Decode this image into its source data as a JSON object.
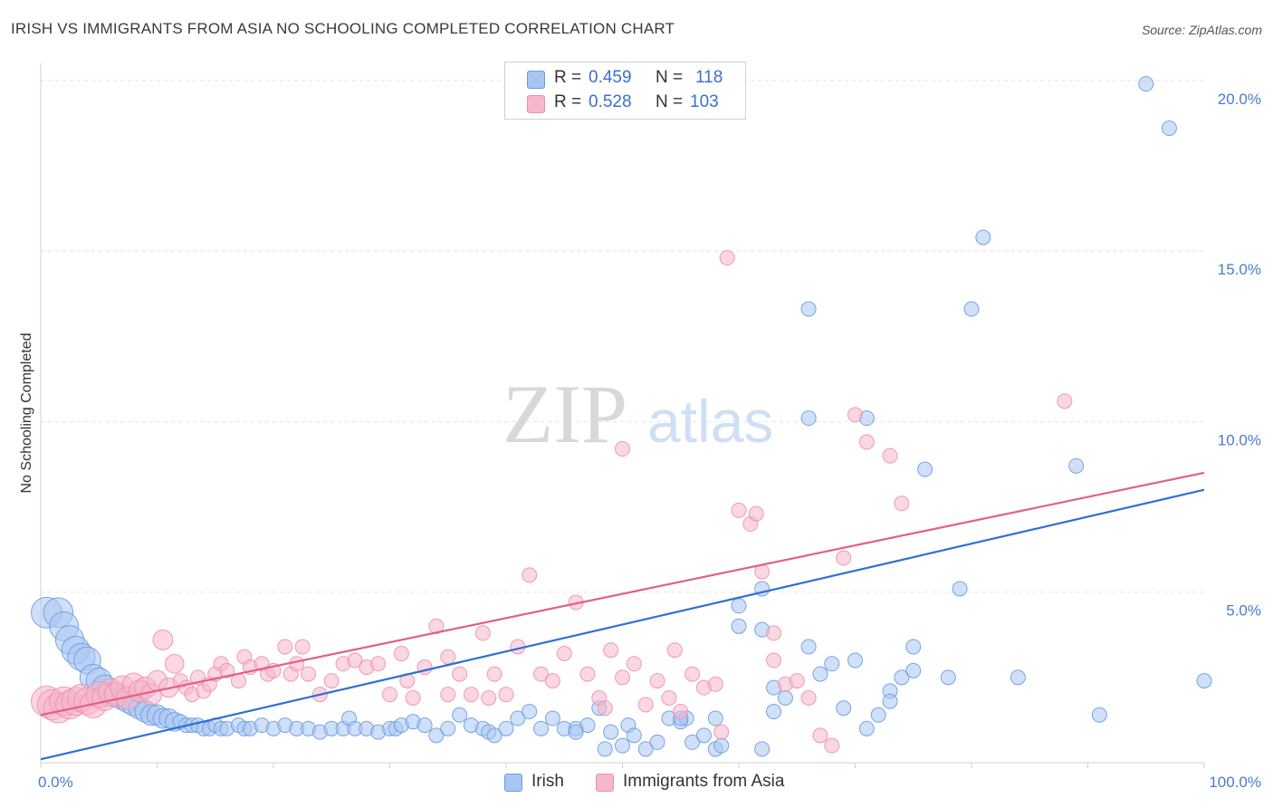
{
  "title": "IRISH VS IMMIGRANTS FROM ASIA NO SCHOOLING COMPLETED CORRELATION CHART",
  "source": "Source: ZipAtlas.com",
  "watermark": {
    "left": "ZIP",
    "right": "atlas"
  },
  "legend": {
    "rows": [
      {
        "r_label": "R = ",
        "r_value": "0.459",
        "n_label": "N = ",
        "n_value": "118",
        "color": "#a9c6f2"
      },
      {
        "r_label": "R = ",
        "r_value": "0.528",
        "n_label": "N = ",
        "n_value": "103",
        "color": "#f6b7cb"
      }
    ]
  },
  "bottom_legend": [
    {
      "label": "Irish",
      "color": "#a9c6f2"
    },
    {
      "label": "Immigrants from Asia",
      "color": "#f6b7cb"
    }
  ],
  "chart_data": {
    "type": "scatter",
    "title": "IRISH VS IMMIGRANTS FROM ASIA NO SCHOOLING COMPLETED CORRELATION CHART",
    "xlabel": "",
    "ylabel": "No Schooling Completed",
    "xlim": [
      0,
      100
    ],
    "ylim": [
      0,
      20.5
    ],
    "x_tick_labels": [
      "0.0%",
      "100.0%"
    ],
    "y_ticks": [
      5,
      10,
      15,
      20
    ],
    "y_tick_labels": [
      "5.0%",
      "10.0%",
      "15.0%",
      "20.0%"
    ],
    "grid": true,
    "legend_position": "top-center",
    "series": [
      {
        "name": "Irish",
        "color": "#6a9be0",
        "fill": "#a9c6f2",
        "trend": {
          "x": [
            0,
            100
          ],
          "y": [
            0.1,
            8.0
          ],
          "color": "#2f6fd6"
        },
        "points": [
          [
            0.5,
            4.4
          ],
          [
            1.5,
            4.4
          ],
          [
            2,
            4.0
          ],
          [
            2.5,
            3.6
          ],
          [
            3,
            3.3
          ],
          [
            3.5,
            3.1
          ],
          [
            4,
            3.0
          ],
          [
            4.5,
            2.5
          ],
          [
            5,
            2.4
          ],
          [
            5.5,
            2.2
          ],
          [
            6,
            2.0
          ],
          [
            6.5,
            2.0
          ],
          [
            7,
            1.9
          ],
          [
            7.5,
            1.8
          ],
          [
            8,
            1.7
          ],
          [
            8.5,
            1.6
          ],
          [
            9,
            1.5
          ],
          [
            9.5,
            1.4
          ],
          [
            10,
            1.4
          ],
          [
            10.5,
            1.3
          ],
          [
            11,
            1.3
          ],
          [
            11.5,
            1.2
          ],
          [
            12,
            1.2
          ],
          [
            12.5,
            1.1
          ],
          [
            13,
            1.1
          ],
          [
            13.5,
            1.1
          ],
          [
            14,
            1.0
          ],
          [
            14.5,
            1.0
          ],
          [
            15,
            1.1
          ],
          [
            15.5,
            1.0
          ],
          [
            16,
            1.0
          ],
          [
            17,
            1.1
          ],
          [
            17.5,
            1.0
          ],
          [
            18,
            1.0
          ],
          [
            19,
            1.1
          ],
          [
            20,
            1.0
          ],
          [
            21,
            1.1
          ],
          [
            22,
            1.0
          ],
          [
            23,
            1.0
          ],
          [
            24,
            0.9
          ],
          [
            25,
            1.0
          ],
          [
            26,
            1.0
          ],
          [
            26.5,
            1.3
          ],
          [
            27,
            1.0
          ],
          [
            28,
            1.0
          ],
          [
            29,
            0.9
          ],
          [
            30,
            1.0
          ],
          [
            30.5,
            1.0
          ],
          [
            31,
            1.1
          ],
          [
            32,
            1.2
          ],
          [
            33,
            1.1
          ],
          [
            34,
            0.8
          ],
          [
            35,
            1.0
          ],
          [
            36,
            1.4
          ],
          [
            37,
            1.1
          ],
          [
            38,
            1.0
          ],
          [
            38.5,
            0.9
          ],
          [
            39,
            0.8
          ],
          [
            40,
            1.0
          ],
          [
            41,
            1.3
          ],
          [
            42,
            1.5
          ],
          [
            43,
            1.0
          ],
          [
            44,
            1.3
          ],
          [
            45,
            1.0
          ],
          [
            46,
            1.0
          ],
          [
            47,
            1.1
          ],
          [
            48,
            1.6
          ],
          [
            48.5,
            0.4
          ],
          [
            49,
            0.9
          ],
          [
            50,
            0.5
          ],
          [
            50.5,
            1.1
          ],
          [
            51,
            0.8
          ],
          [
            52,
            0.4
          ],
          [
            53,
            0.6
          ],
          [
            54,
            1.3
          ],
          [
            55,
            1.2
          ],
          [
            55.5,
            1.3
          ],
          [
            56,
            0.6
          ],
          [
            57,
            0.8
          ],
          [
            58,
            0.4
          ],
          [
            58,
            1.3
          ],
          [
            58.5,
            0.5
          ],
          [
            60,
            4.6
          ],
          [
            62,
            0.4
          ],
          [
            62,
            5.1
          ],
          [
            60,
            4.0
          ],
          [
            62,
            3.9
          ],
          [
            63,
            2.2
          ],
          [
            63,
            1.5
          ],
          [
            64,
            1.9
          ],
          [
            66,
            3.4
          ],
          [
            67,
            2.6
          ],
          [
            68,
            2.9
          ],
          [
            69,
            1.6
          ],
          [
            70,
            3.0
          ],
          [
            71,
            1.0
          ],
          [
            72,
            1.4
          ],
          [
            73,
            2.1
          ],
          [
            73,
            1.8
          ],
          [
            74,
            2.5
          ],
          [
            75,
            2.7
          ],
          [
            75,
            3.4
          ],
          [
            76,
            8.6
          ],
          [
            78,
            2.5
          ],
          [
            79,
            5.1
          ],
          [
            80,
            13.3
          ],
          [
            81,
            15.4
          ],
          [
            84,
            2.5
          ],
          [
            89,
            8.7
          ],
          [
            91,
            1.4
          ],
          [
            95,
            19.9
          ],
          [
            97,
            18.6
          ],
          [
            100,
            2.4
          ],
          [
            66,
            13.3
          ],
          [
            66,
            10.1
          ],
          [
            71,
            10.1
          ],
          [
            55,
            1.3
          ],
          [
            46,
            0.9
          ]
        ]
      },
      {
        "name": "Immigrants from Asia",
        "color": "#ee90ad",
        "fill": "#f6b7cb",
        "trend": {
          "x": [
            0,
            100
          ],
          "y": [
            1.4,
            8.5
          ],
          "color": "#e0608a"
        },
        "points": [
          [
            0.5,
            1.8
          ],
          [
            1,
            1.7
          ],
          [
            1.5,
            1.6
          ],
          [
            2,
            1.8
          ],
          [
            2.5,
            1.7
          ],
          [
            3,
            1.8
          ],
          [
            3.5,
            1.9
          ],
          [
            4,
            1.8
          ],
          [
            4.5,
            1.7
          ],
          [
            5,
            2.0
          ],
          [
            5.5,
            1.9
          ],
          [
            6,
            2.1
          ],
          [
            6.5,
            2.0
          ],
          [
            7,
            2.2
          ],
          [
            7.5,
            1.9
          ],
          [
            8,
            2.3
          ],
          [
            8.5,
            2.1
          ],
          [
            9,
            2.2
          ],
          [
            9.5,
            2.0
          ],
          [
            10,
            2.4
          ],
          [
            10.5,
            3.6
          ],
          [
            11,
            2.2
          ],
          [
            11.5,
            2.9
          ],
          [
            12,
            2.4
          ],
          [
            12.5,
            2.2
          ],
          [
            13,
            2.0
          ],
          [
            13.5,
            2.5
          ],
          [
            14,
            2.1
          ],
          [
            14.5,
            2.3
          ],
          [
            15,
            2.6
          ],
          [
            15.5,
            2.9
          ],
          [
            16,
            2.7
          ],
          [
            17,
            2.4
          ],
          [
            17.5,
            3.1
          ],
          [
            18,
            2.8
          ],
          [
            19,
            2.9
          ],
          [
            19.5,
            2.6
          ],
          [
            20,
            2.7
          ],
          [
            21,
            3.4
          ],
          [
            21.5,
            2.6
          ],
          [
            22,
            2.9
          ],
          [
            22.5,
            3.4
          ],
          [
            23,
            2.6
          ],
          [
            24,
            2.0
          ],
          [
            25,
            2.4
          ],
          [
            26,
            2.9
          ],
          [
            27,
            3.0
          ],
          [
            28,
            2.8
          ],
          [
            29,
            2.9
          ],
          [
            30,
            2.0
          ],
          [
            31,
            3.2
          ],
          [
            31.5,
            2.4
          ],
          [
            32,
            1.9
          ],
          [
            33,
            2.8
          ],
          [
            34,
            4.0
          ],
          [
            35,
            3.1
          ],
          [
            36,
            2.6
          ],
          [
            37,
            2.0
          ],
          [
            38,
            3.8
          ],
          [
            38.5,
            1.9
          ],
          [
            39,
            2.6
          ],
          [
            40,
            2.0
          ],
          [
            41,
            3.4
          ],
          [
            42,
            5.5
          ],
          [
            43,
            2.6
          ],
          [
            44,
            2.4
          ],
          [
            45,
            3.2
          ],
          [
            46,
            4.7
          ],
          [
            47,
            2.6
          ],
          [
            48,
            1.9
          ],
          [
            48.5,
            1.6
          ],
          [
            49,
            3.3
          ],
          [
            50,
            2.5
          ],
          [
            51,
            2.9
          ],
          [
            52,
            1.7
          ],
          [
            53,
            2.4
          ],
          [
            54,
            1.9
          ],
          [
            54.5,
            3.3
          ],
          [
            55,
            1.5
          ],
          [
            56,
            2.6
          ],
          [
            57,
            2.2
          ],
          [
            58,
            2.3
          ],
          [
            58.5,
            0.9
          ],
          [
            59,
            14.8
          ],
          [
            60,
            7.4
          ],
          [
            61,
            7.0
          ],
          [
            61.5,
            7.3
          ],
          [
            62,
            5.6
          ],
          [
            63,
            3.8
          ],
          [
            63,
            3.0
          ],
          [
            64,
            2.3
          ],
          [
            65,
            2.4
          ],
          [
            66,
            1.9
          ],
          [
            67,
            0.8
          ],
          [
            68,
            0.5
          ],
          [
            69,
            6.0
          ],
          [
            70,
            10.2
          ],
          [
            71,
            9.4
          ],
          [
            73,
            9.0
          ],
          [
            74,
            7.6
          ],
          [
            88,
            10.6
          ],
          [
            50,
            9.2
          ],
          [
            35,
            2.0
          ]
        ]
      }
    ]
  }
}
